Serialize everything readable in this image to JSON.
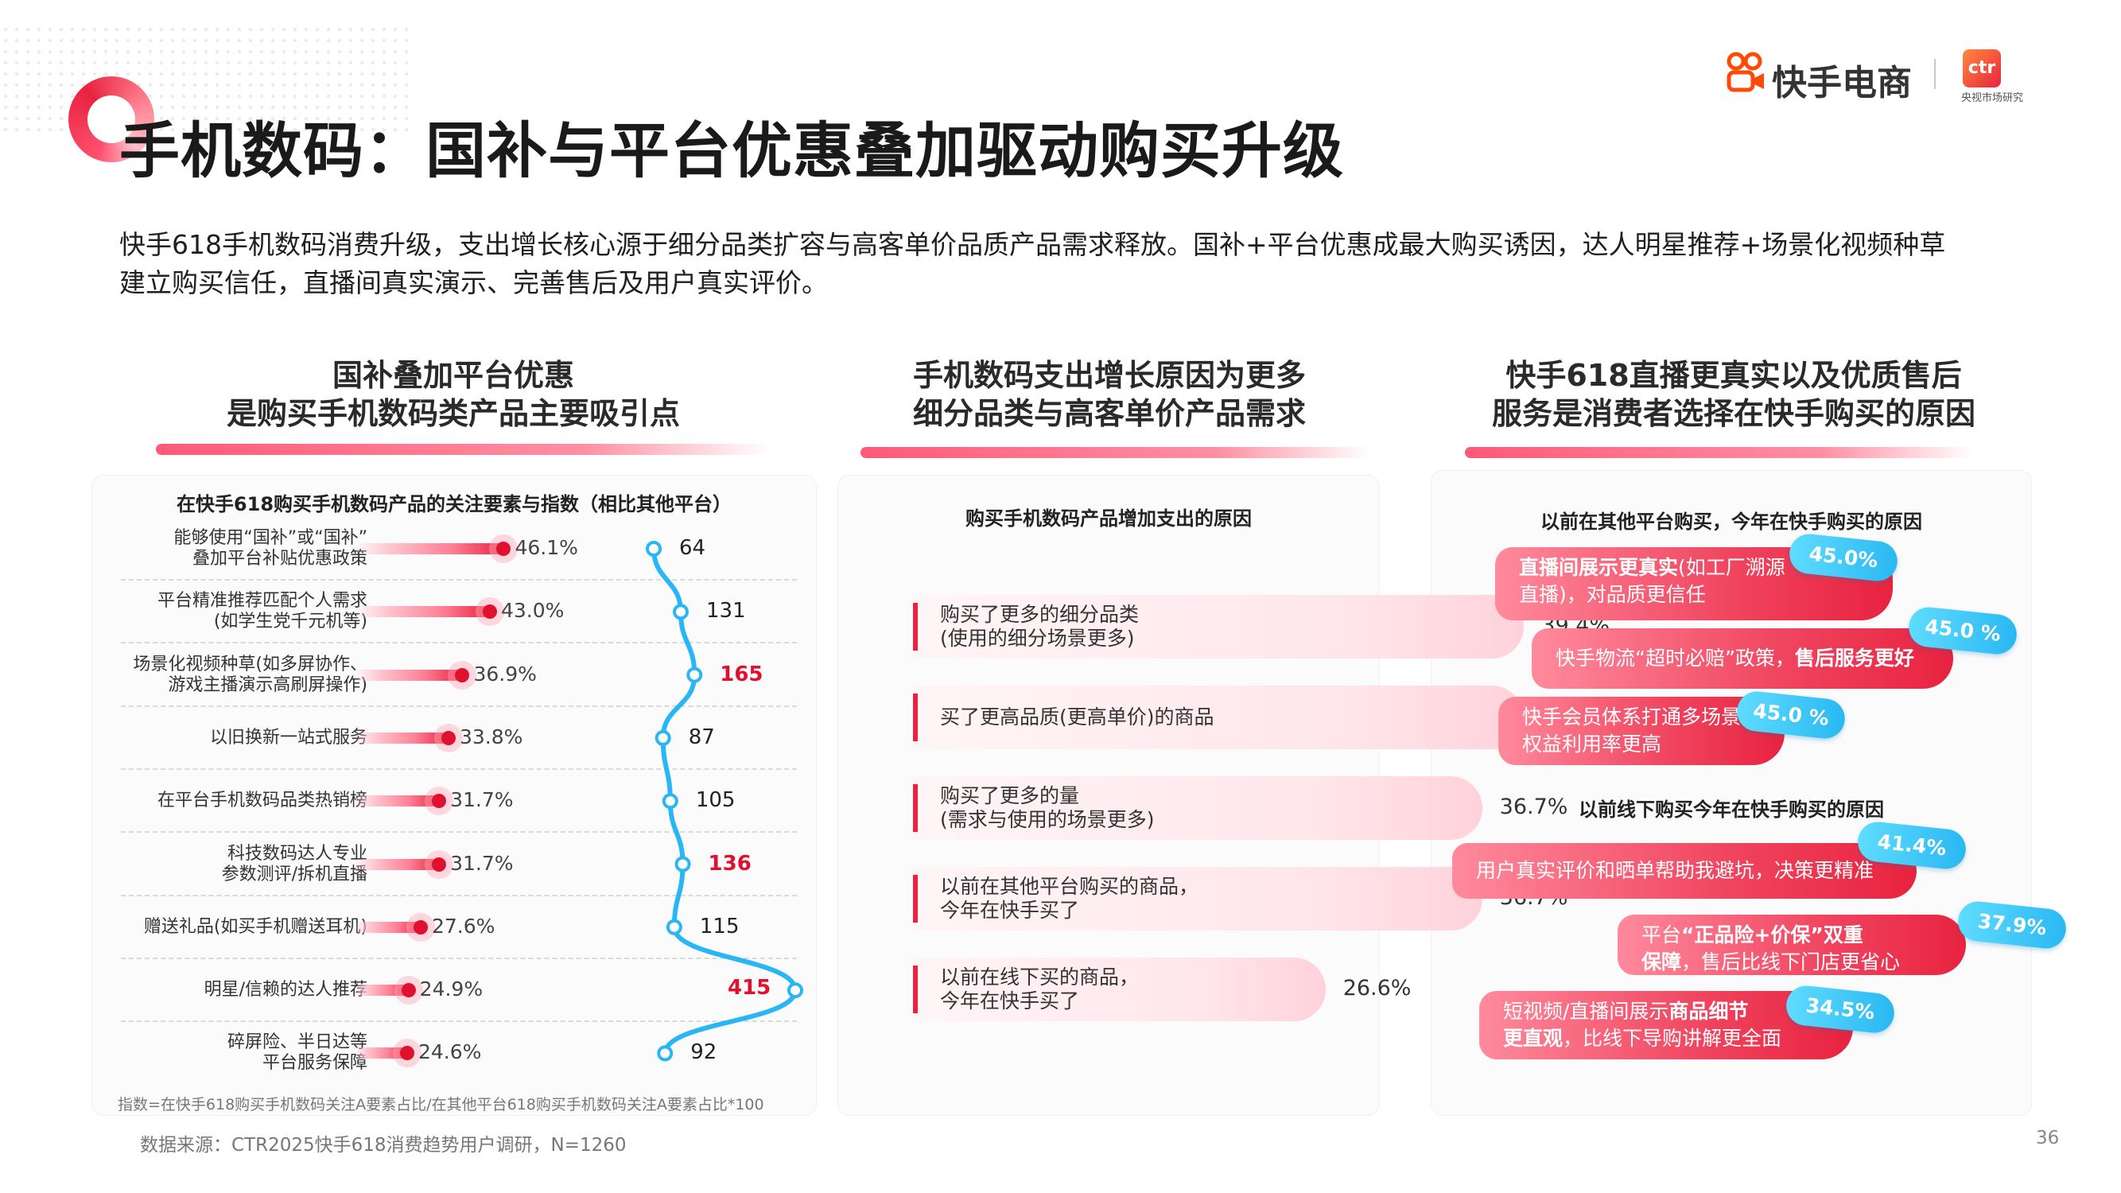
{
  "header": {
    "title": "手机数码：国补与平台优惠叠加驱动购买升级",
    "brand": "快手电商",
    "ctr_logo": "ctr",
    "ctr_sub": "央视市场研究"
  },
  "summary": "快手618手机数码消费升级，支出增长核心源于细分品类扩容与高客单价品质产品需求释放。国补+平台优惠成最大购买诱因，达人明星推荐+场景化视频种草建立购买信任，直播间真实演示、完善售后及用户真实评价。",
  "columns": {
    "left": {
      "title_line1": "国补叠加平台优惠",
      "title_line2": "是购买手机数码类产品主要吸引点"
    },
    "middle": {
      "title_line1": "手机数码支出增长原因为更多",
      "title_line2": "细分品类与高客单价产品需求"
    },
    "right": {
      "title_line1": "快手618直播更真实以及优质售后",
      "title_line2": "服务是消费者选择在快手购买的原因"
    }
  },
  "chart_data": [
    {
      "type": "bar",
      "title": "在快手618购买手机数码产品的关注要素与指数（相比其他平台）",
      "categories": [
        [
          "能够使用“国补”或“国补”",
          "叠加平台补贴优惠政策"
        ],
        [
          "平台精准推荐匹配个人需求",
          "(如学生党千元机等)"
        ],
        [
          "场景化视频种草(如多屏协作、",
          "游戏主播演示高刷屏操作)"
        ],
        [
          "以旧换新一站式服务"
        ],
        [
          "在平台手机数码品类热销榜"
        ],
        [
          "科技数码达人专业",
          "参数测评/拆机直播"
        ],
        [
          "赠送礼品(如买手机赠送耳机)"
        ],
        [
          "明星/信赖的达人推荐"
        ],
        [
          "碎屏险、半日达等",
          "平台服务保障"
        ]
      ],
      "series": [
        {
          "values": [
            46.1,
            43.0,
            36.9,
            33.8,
            31.7,
            31.7,
            27.6,
            24.9,
            24.6
          ],
          "labels": [
            "46.1%",
            "43.0%",
            "36.9%",
            "33.8%",
            "31.7%",
            "31.7%",
            "27.6%",
            "24.9%",
            "24.6%"
          ]
        },
        {
          "values": [
            64,
            131,
            165,
            87,
            105,
            136,
            115,
            415,
            92
          ],
          "labels": [
            "64",
            "131",
            "165",
            "87",
            "105",
            "136",
            "115",
            "415",
            "92"
          ],
          "highlighted": [
            false,
            false,
            true,
            false,
            false,
            true,
            false,
            true,
            false
          ]
        }
      ],
      "note": "指数=在快手618购买手机数码关注A要素占比/在其他平台618购买手机数码关注A要素占比*100",
      "colors": {
        "bar": "#e8233f",
        "index_line": "#29b6f6",
        "highlight": "#e0102f"
      }
    },
    {
      "type": "bar",
      "title": "购买手机数码产品增加支出的原因",
      "categories": [
        [
          "购买了更多的细分品类",
          "(使用的细分场景更多)"
        ],
        [
          "买了更高品质(更高单价)的商品"
        ],
        [
          "购买了更多的量",
          "(需求与使用的场景更多)"
        ],
        [
          "以前在其他平台购买的商品，",
          "今年在快手买了"
        ],
        [
          "以前在线下买的商品，",
          "今年在快手买了"
        ]
      ],
      "values": [
        39.4,
        39.4,
        36.7,
        36.7,
        26.6
      ],
      "labels": [
        "39.4%",
        "39.4%",
        "36.7%",
        "36.7%",
        "26.6%"
      ]
    },
    {
      "type": "bar",
      "title": "以前在其他平台购买，今年在快手购买的原因",
      "items": [
        {
          "parts": [
            [
              "直播间展示更真实",
              true
            ],
            [
              "(如工厂溯源",
              false
            ]
          ],
          "line2": [
            [
              "直播)，对品质更信任",
              false
            ]
          ],
          "value": 45.0,
          "label": "45.0%"
        },
        {
          "parts": [
            [
              "快手物流“超时必赔”政策，",
              false
            ],
            [
              "售后服务更好",
              true
            ]
          ],
          "line2": [],
          "value": 45.0,
          "label": "45.0 %"
        },
        {
          "parts": [
            [
              "快手会员体系打通多场景，",
              false
            ]
          ],
          "line2": [
            [
              "权益利用率更高",
              false
            ]
          ],
          "value": 45.0,
          "label": "45.0 %"
        }
      ]
    },
    {
      "type": "bar",
      "title": "以前线下购买今年在快手购买的原因",
      "items": [
        {
          "parts": [
            [
              "用户真实评价和晒单帮助我避坑，决策更精准",
              false
            ]
          ],
          "line2": [],
          "value": 41.4,
          "label": "41.4%"
        },
        {
          "parts": [
            [
              "平台",
              false
            ],
            [
              "“正品险+价保”",
              true
            ],
            [
              "双重",
              true
            ]
          ],
          "line2": [
            [
              "保障",
              true
            ],
            [
              "，售后比线下门店更省心",
              false
            ]
          ],
          "value": 37.9,
          "label": "37.9%"
        },
        {
          "parts": [
            [
              "短视频/直播间展示",
              false
            ],
            [
              "商品细节",
              true
            ]
          ],
          "line2": [
            [
              "更直观",
              true
            ],
            [
              "，比线下导购讲解更全面",
              false
            ]
          ],
          "value": 34.5,
          "label": "34.5%"
        }
      ]
    }
  ],
  "footer": {
    "source": "数据来源：CTR2025快手618消费趋势用户调研，N=1260",
    "page": "36"
  }
}
